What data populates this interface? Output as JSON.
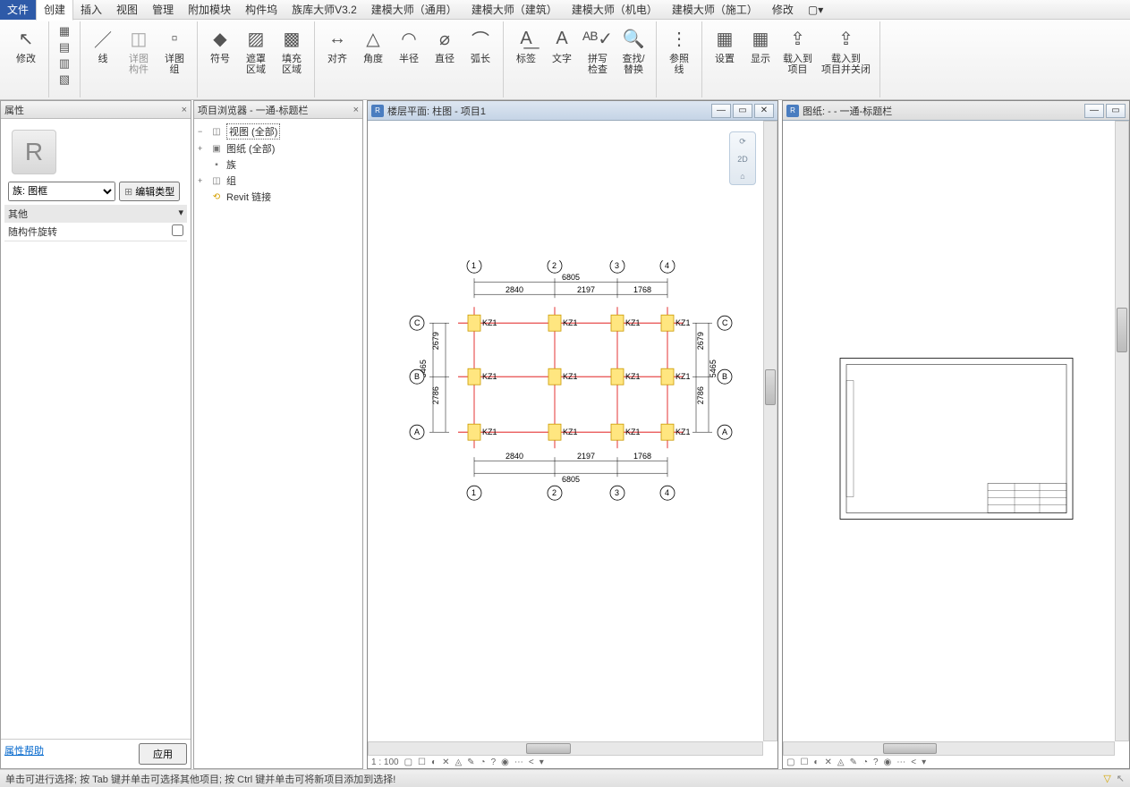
{
  "menubar": {
    "file": "文件",
    "tabs": [
      "创建",
      "插入",
      "视图",
      "管理",
      "附加模块",
      "构件坞",
      "族库大师V3.2",
      "建模大师（通用）",
      "建模大师（建筑）",
      "建模大师（机电）",
      "建模大师（施工）",
      "修改",
      "▢▾"
    ],
    "active_index": 0
  },
  "ribbon": {
    "groups": [
      {
        "items": [
          {
            "icon": "↖",
            "label": "修改",
            "big": true
          }
        ]
      },
      {
        "items": [
          {
            "icon": "▦",
            "label": ""
          },
          {
            "icon": "▤",
            "label": ""
          },
          {
            "icon": "▥",
            "label": ""
          },
          {
            "icon": "▧",
            "label": ""
          }
        ]
      },
      {
        "items": [
          {
            "icon": "／",
            "label": "线"
          },
          {
            "icon": "◫",
            "label": "详图\n构件",
            "dim": true
          },
          {
            "icon": "▫",
            "label": "详图\n组"
          }
        ]
      },
      {
        "items": [
          {
            "icon": "◆",
            "label": "符号"
          },
          {
            "icon": "▨",
            "label": "遮罩\n区域"
          },
          {
            "icon": "▩",
            "label": "填充\n区域"
          }
        ]
      },
      {
        "items": [
          {
            "icon": "↔",
            "label": "对齐"
          },
          {
            "icon": "△",
            "label": "角度"
          },
          {
            "icon": "◠",
            "label": "半径"
          },
          {
            "icon": "⌀",
            "label": "直径"
          },
          {
            "icon": "⌒",
            "label": "弧长"
          }
        ]
      },
      {
        "items": [
          {
            "icon": "A͟",
            "label": "标签"
          },
          {
            "icon": "A",
            "label": "文字"
          },
          {
            "icon": "ᴬᴮ✓",
            "label": "拼写\n检查"
          },
          {
            "icon": "🔍",
            "label": "查找/\n替换"
          }
        ]
      },
      {
        "items": [
          {
            "icon": "⋮",
            "label": "参照\n线"
          }
        ]
      },
      {
        "items": [
          {
            "icon": "▦",
            "label": "设置"
          },
          {
            "icon": "▦",
            "label": "显示"
          },
          {
            "icon": "⇪",
            "label": "载入到\n项目"
          },
          {
            "icon": "⇪",
            "label": "载入到\n项目并关闭"
          }
        ]
      }
    ]
  },
  "props": {
    "title": "属性",
    "family_label": "族: 图框",
    "edit_type": "编辑类型",
    "section": "其他",
    "row_label": "随构件旋转",
    "help": "属性帮助",
    "apply": "应用"
  },
  "browser": {
    "title": "项目浏览器 - 一通-标题栏",
    "items": [
      {
        "exp": "−",
        "icon": "◫",
        "label": "视图 (全部)",
        "sel": true,
        "indent": 0
      },
      {
        "exp": "+",
        "icon": "▣",
        "label": "图纸 (全部)",
        "indent": 0
      },
      {
        "exp": "",
        "icon": "▪",
        "label": "族",
        "indent": 0
      },
      {
        "exp": "+",
        "icon": "◫",
        "label": "组",
        "indent": 0
      },
      {
        "exp": "",
        "icon": "⟲",
        "label": "Revit 链接",
        "indent": 0,
        "gold": true
      }
    ]
  },
  "doc1": {
    "title": "楼层平面: 柱图 - 项目1",
    "scale": "1 : 100",
    "toolbar_icons": [
      "▢",
      "☐",
      "◐",
      "✕",
      "◬",
      "✎",
      "◔",
      "?",
      "◉",
      "⋯",
      "<",
      "▾"
    ]
  },
  "doc2": {
    "title": "图纸:  -  - 一通-标题栏"
  },
  "plan": {
    "col_grid_labels_x": [
      "1",
      "2",
      "3",
      "4"
    ],
    "col_grid_labels_y": [
      "C",
      "B",
      "A"
    ],
    "dim_top_total": "6805",
    "dim_top": [
      "2840",
      "2197",
      "1768"
    ],
    "dim_bottom": [
      "2840",
      "2197",
      "1768"
    ],
    "dim_bottom_total": "6805",
    "dim_left_total": "5465",
    "dim_left": [
      "2679",
      "2786"
    ],
    "dim_right_total": "5465",
    "dim_right": [
      "2679",
      "2786"
    ],
    "col_label": "KZ1",
    "x_positions": [
      0,
      90,
      160,
      216
    ],
    "y_positions": [
      0,
      60,
      122
    ],
    "colors": {
      "grid": "#d00000",
      "column_fill": "#ffe680",
      "column_stroke": "#cc9900"
    }
  },
  "status": {
    "text": "单击可进行选择; 按 Tab 键并单击可选择其他项目; 按 Ctrl 键并单击可将新项目添加到选择!"
  }
}
